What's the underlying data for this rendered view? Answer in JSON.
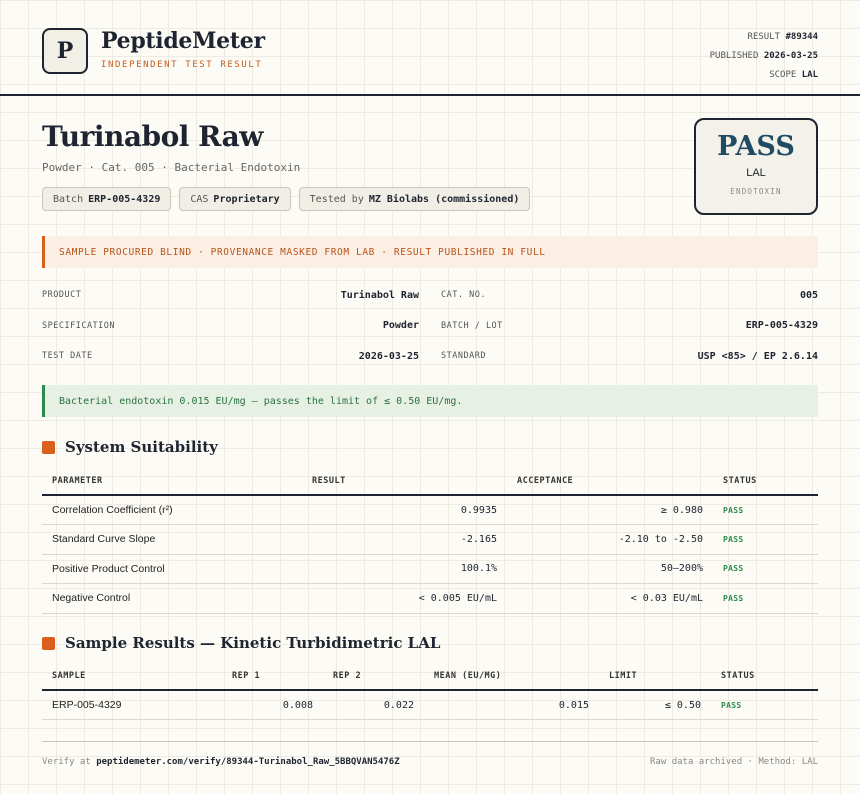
{
  "header": {
    "logo_letter": "P",
    "brand": "PeptideMeter",
    "brand_sub": "INDEPENDENT TEST RESULT",
    "result_label": "RESULT",
    "result_value": "#89344",
    "published_label": "PUBLISHED",
    "published_value": "2026-03-25",
    "scope_label": "SCOPE",
    "scope_value": "LAL"
  },
  "product": {
    "title": "Turinabol Raw",
    "subtitle": "Powder · Cat. 005 · Bacterial Endotoxin",
    "chips": [
      {
        "label": "Batch",
        "value": "ERP-005-4329"
      },
      {
        "label": "CAS",
        "value": "Proprietary"
      },
      {
        "label": "Tested by",
        "value": "MZ Biolabs (commissioned)"
      }
    ]
  },
  "stamp": {
    "main": "PASS",
    "sub": "LAL",
    "sub2": "ENDOTOXIN"
  },
  "banner": "SAMPLE PROCURED BLIND · PROVENANCE MASKED FROM LAB · RESULT PUBLISHED IN FULL",
  "info": {
    "rows": [
      {
        "l_label": "PRODUCT",
        "l_value": "Turinabol Raw",
        "r_label": "CAT. NO.",
        "r_value": "005"
      },
      {
        "l_label": "SPECIFICATION",
        "l_value": "Powder",
        "r_label": "BATCH / LOT",
        "r_value": "ERP-005-4329"
      },
      {
        "l_label": "TEST DATE",
        "l_value": "2026-03-25",
        "r_label": "STANDARD",
        "r_value": "USP <85> / EP 2.6.14"
      }
    ]
  },
  "ok_message": "Bacterial endotoxin 0.015 EU/mg — passes the limit of ≤ 0.50 EU/mg.",
  "suitability": {
    "title": "System Suitability",
    "headers": [
      "PARAMETER",
      "RESULT",
      "ACCEPTANCE",
      "STATUS"
    ],
    "rows": [
      {
        "parameter": "Correlation Coefficient (r²)",
        "result": "0.9935",
        "acceptance": "≥ 0.980",
        "status": "PASS"
      },
      {
        "parameter": "Standard Curve Slope",
        "result": "-2.165",
        "acceptance": "-2.10 to -2.50",
        "status": "PASS"
      },
      {
        "parameter": "Positive Product Control",
        "result": "100.1%",
        "acceptance": "50–200%",
        "status": "PASS"
      },
      {
        "parameter": "Negative Control",
        "result": "< 0.005 EU/mL",
        "acceptance": "< 0.03 EU/mL",
        "status": "PASS"
      }
    ]
  },
  "samples": {
    "title": "Sample Results — Kinetic Turbidimetric LAL",
    "headers": [
      "SAMPLE",
      "REP 1",
      "REP 2",
      "MEAN (EU/MG)",
      "LIMIT",
      "STATUS"
    ],
    "rows": [
      {
        "sample": "ERP-005-4329",
        "rep1": "0.008",
        "rep2": "0.022",
        "mean": "0.015",
        "limit": "≤ 0.50",
        "status": "PASS"
      }
    ]
  },
  "footer": {
    "verify_prefix": "Verify at",
    "verify_url": "peptidemeter.com/verify/89344-Turinabol_Raw_5BBQVAN5476Z",
    "right": "Raw data archived · Method: LAL"
  }
}
